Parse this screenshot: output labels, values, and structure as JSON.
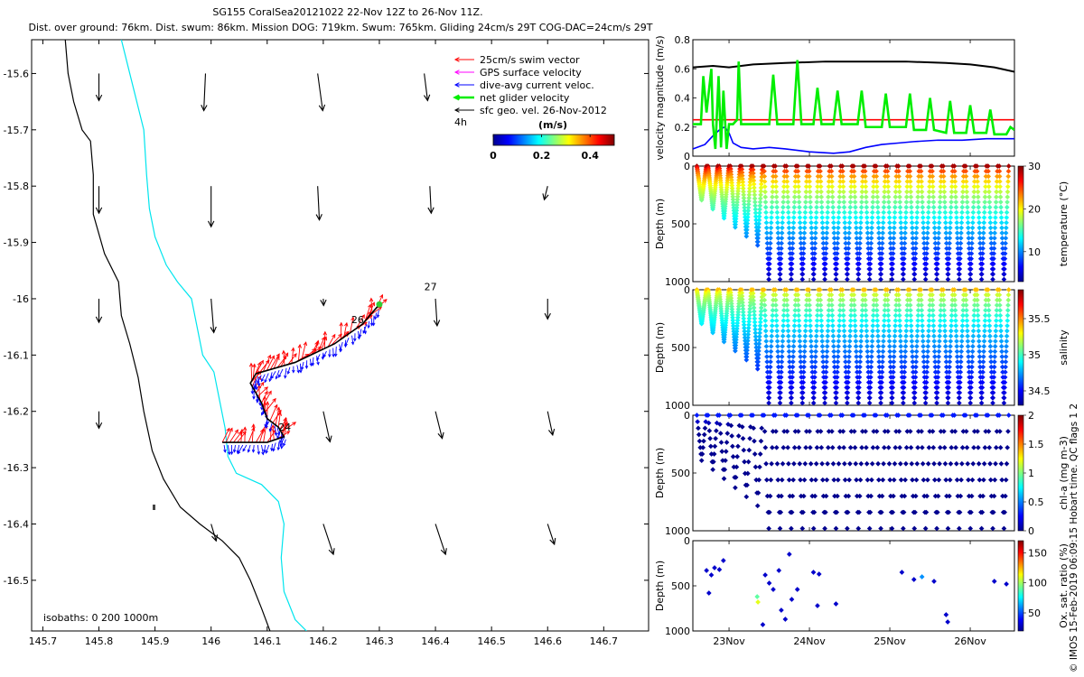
{
  "header": {
    "title": "SG155 CoralSea20121022 22-Nov 12Z to 26-Nov 11Z.",
    "subtitle": "Dist. over ground: 76km. Dist. swum: 86km. Mission DOG: 719km. Swum: 765km. Gliding 24cm/s 29T COG-DAC=24cm/s 29T"
  },
  "side_note": "© IMOS 15-Feb-2019 06:09:15 Hobart time. QC flags 1  2",
  "colors": {
    "swim": "#ff0000",
    "gps": "#ff00ff",
    "dac": "#0000ff",
    "net": "#00ee00",
    "geo": "#000000",
    "isobath_200": "#00e5ee",
    "isobath_1000": "#000000"
  },
  "chart_data": [
    {
      "type": "scatter",
      "name": "map",
      "xlim": [
        145.68,
        146.78
      ],
      "ylim": [
        -16.59,
        -15.54
      ],
      "xticks": [
        145.7,
        145.8,
        145.9,
        146,
        146.1,
        146.2,
        146.3,
        146.4,
        146.5,
        146.6,
        146.7
      ],
      "xtick_labels": [
        "145.7",
        "145.8",
        "145.9",
        "146",
        "146.1",
        "146.2",
        "146.3",
        "146.4",
        "146.5",
        "146.6",
        "146.7"
      ],
      "yticks": [
        -15.6,
        -15.7,
        -15.8,
        -15.9,
        -16,
        -16.1,
        -16.2,
        -16.3,
        -16.4,
        -16.5
      ],
      "ytick_labels": [
        "-15.6",
        "-15.7",
        "-15.8",
        "-15.9",
        "-16",
        "-16.1",
        "-16.2",
        "-16.3",
        "-16.4",
        "-16.5"
      ],
      "legend": {
        "placement": "top-right",
        "entries": [
          {
            "label": "25cm/s swim vector",
            "color": "#ff0000"
          },
          {
            "label": "GPS surface velocity",
            "color": "#ff00ff"
          },
          {
            "label": "dive-avg current veloc.",
            "color": "#0000ff"
          },
          {
            "label": "net glider velocity",
            "color": "#00ee00"
          },
          {
            "label": "sfc geo. vel. 26-Nov-2012",
            "color": "#000000"
          }
        ],
        "time_label": "4h"
      },
      "colorbar": {
        "label": "(m/s)",
        "ticks": [
          "0",
          "0.2",
          "0.4"
        ],
        "range": [
          0,
          0.5
        ]
      },
      "isobath_label": "isobaths: 0   200  1000m",
      "day_labels": [
        {
          "text": "24",
          "lon": 146.12,
          "lat": -16.234
        },
        {
          "text": "26",
          "lon": 146.25,
          "lat": -16.043
        },
        {
          "text": "27",
          "lon": 146.38,
          "lat": -15.985
        }
      ],
      "isobath_1000m": [
        [
          145.74,
          -15.54
        ],
        [
          145.745,
          -15.6
        ],
        [
          145.755,
          -15.65
        ],
        [
          145.77,
          -15.7
        ],
        [
          145.785,
          -15.72
        ],
        [
          145.79,
          -15.78
        ],
        [
          145.79,
          -15.85
        ],
        [
          145.81,
          -15.92
        ],
        [
          145.835,
          -15.97
        ],
        [
          145.84,
          -16.03
        ],
        [
          145.855,
          -16.08
        ],
        [
          145.87,
          -16.14
        ],
        [
          145.88,
          -16.2
        ],
        [
          145.895,
          -16.27
        ],
        [
          145.915,
          -16.32
        ],
        [
          145.945,
          -16.37
        ],
        [
          145.98,
          -16.4
        ],
        [
          146.02,
          -16.43
        ],
        [
          146.05,
          -16.46
        ],
        [
          146.07,
          -16.5
        ],
        [
          146.09,
          -16.55
        ],
        [
          146.105,
          -16.59
        ]
      ],
      "isobath_200m": [
        [
          145.84,
          -15.54
        ],
        [
          145.855,
          -15.6
        ],
        [
          145.87,
          -15.66
        ],
        [
          145.88,
          -15.7
        ],
        [
          145.885,
          -15.78
        ],
        [
          145.89,
          -15.84
        ],
        [
          145.9,
          -15.89
        ],
        [
          145.92,
          -15.94
        ],
        [
          145.94,
          -15.97
        ],
        [
          145.965,
          -16.0
        ],
        [
          145.975,
          -16.05
        ],
        [
          145.985,
          -16.1
        ],
        [
          146.005,
          -16.13
        ],
        [
          146.015,
          -16.18
        ],
        [
          146.025,
          -16.23
        ],
        [
          146.03,
          -16.28
        ],
        [
          146.045,
          -16.31
        ],
        [
          146.09,
          -16.33
        ],
        [
          146.12,
          -16.36
        ],
        [
          146.13,
          -16.4
        ],
        [
          146.125,
          -16.46
        ],
        [
          146.13,
          -16.52
        ],
        [
          146.15,
          -16.57
        ],
        [
          146.17,
          -16.59
        ]
      ],
      "glider_track": [
        [
          146.02,
          -16.255
        ],
        [
          146.1,
          -16.255
        ],
        [
          146.13,
          -16.245
        ],
        [
          146.12,
          -16.228
        ],
        [
          146.1,
          -16.213
        ],
        [
          146.09,
          -16.185
        ],
        [
          146.07,
          -16.15
        ],
        [
          146.08,
          -16.133
        ],
        [
          146.15,
          -16.113
        ],
        [
          146.22,
          -16.08
        ],
        [
          146.27,
          -16.045
        ],
        [
          146.3,
          -16.01
        ]
      ],
      "geo_velocity": [
        {
          "lon": 145.8,
          "lat": -15.6,
          "u": 0,
          "v": -0.08
        },
        {
          "lon": 145.99,
          "lat": -15.6,
          "u": -0.005,
          "v": -0.11
        },
        {
          "lon": 146.19,
          "lat": -15.6,
          "u": 0.015,
          "v": -0.11
        },
        {
          "lon": 146.38,
          "lat": -15.6,
          "u": 0.01,
          "v": -0.08
        },
        {
          "lon": 145.8,
          "lat": -15.8,
          "u": 0,
          "v": -0.08
        },
        {
          "lon": 146.0,
          "lat": -15.8,
          "u": 0,
          "v": -0.12
        },
        {
          "lon": 146.19,
          "lat": -15.8,
          "u": 0.005,
          "v": -0.1
        },
        {
          "lon": 146.39,
          "lat": -15.8,
          "u": 0.004,
          "v": -0.08
        },
        {
          "lon": 146.6,
          "lat": -15.8,
          "u": -0.01,
          "v": -0.04
        },
        {
          "lon": 145.8,
          "lat": -16.0,
          "u": 0,
          "v": -0.07
        },
        {
          "lon": 146.0,
          "lat": -16.0,
          "u": 0.008,
          "v": -0.1
        },
        {
          "lon": 146.2,
          "lat": -16.0,
          "u": 0.001,
          "v": -0.02
        },
        {
          "lon": 146.4,
          "lat": -16.0,
          "u": 0.005,
          "v": -0.08
        },
        {
          "lon": 146.6,
          "lat": -16.0,
          "u": 0,
          "v": -0.06
        },
        {
          "lon": 145.8,
          "lat": -16.2,
          "u": 0,
          "v": -0.05
        },
        {
          "lon": 146.2,
          "lat": -16.2,
          "u": 0.02,
          "v": -0.09
        },
        {
          "lon": 146.4,
          "lat": -16.2,
          "u": 0.02,
          "v": -0.08
        },
        {
          "lon": 146.6,
          "lat": -16.2,
          "u": 0.015,
          "v": -0.07
        },
        {
          "lon": 146.0,
          "lat": -16.4,
          "u": 0.015,
          "v": -0.05
        },
        {
          "lon": 146.2,
          "lat": -16.4,
          "u": 0.03,
          "v": -0.09
        },
        {
          "lon": 146.4,
          "lat": -16.4,
          "u": 0.03,
          "v": -0.09
        },
        {
          "lon": 146.6,
          "lat": -16.4,
          "u": 0.02,
          "v": -0.06
        }
      ]
    },
    {
      "type": "line",
      "name": "velocity",
      "ylabel": "velocity magnitude (m/s)",
      "ylim": [
        0,
        0.8
      ],
      "yticks": [
        0,
        0.2,
        0.4,
        0.6,
        0.8
      ],
      "xlim": [
        22.55,
        26.55
      ],
      "series": [
        {
          "color": "#000000",
          "x": [
            22.55,
            22.8,
            23.0,
            23.3,
            23.7,
            24.2,
            24.7,
            25.2,
            25.7,
            26.0,
            26.3,
            26.55
          ],
          "y": [
            0.61,
            0.62,
            0.61,
            0.63,
            0.64,
            0.65,
            0.65,
            0.65,
            0.64,
            0.63,
            0.61,
            0.58
          ]
        },
        {
          "color": "#ff0000",
          "x": [
            22.55,
            26.55
          ],
          "y": [
            0.25,
            0.25
          ]
        },
        {
          "color": "#0000ff",
          "x": [
            22.55,
            22.7,
            22.8,
            22.9,
            22.95,
            23.0,
            23.05,
            23.15,
            23.3,
            23.5,
            23.7,
            24.0,
            24.3,
            24.5,
            24.7,
            24.9,
            25.1,
            25.3,
            25.6,
            25.9,
            26.2,
            26.55
          ],
          "y": [
            0.05,
            0.08,
            0.14,
            0.19,
            0.2,
            0.16,
            0.09,
            0.06,
            0.05,
            0.06,
            0.05,
            0.03,
            0.02,
            0.03,
            0.06,
            0.08,
            0.09,
            0.1,
            0.11,
            0.11,
            0.12,
            0.12
          ]
        },
        {
          "color": "#00ee00",
          "x": [
            22.55,
            22.65,
            22.68,
            22.72,
            22.78,
            22.8,
            22.83,
            22.87,
            22.9,
            22.93,
            22.97,
            23.0,
            23.05,
            23.1,
            23.12,
            23.15,
            23.2,
            23.5,
            23.55,
            23.6,
            23.8,
            23.85,
            23.9,
            24.05,
            24.1,
            24.15,
            24.3,
            24.35,
            24.4,
            24.6,
            24.65,
            24.7,
            24.9,
            24.95,
            25.0,
            25.2,
            25.25,
            25.3,
            25.45,
            25.5,
            25.55,
            25.7,
            25.75,
            25.8,
            25.95,
            26.0,
            26.05,
            26.2,
            26.25,
            26.3,
            26.45,
            26.5,
            26.55
          ],
          "y": [
            0.22,
            0.22,
            0.55,
            0.3,
            0.6,
            0.22,
            0.05,
            0.55,
            0.06,
            0.45,
            0.05,
            0.22,
            0.22,
            0.25,
            0.65,
            0.22,
            0.22,
            0.22,
            0.56,
            0.22,
            0.22,
            0.66,
            0.22,
            0.22,
            0.47,
            0.22,
            0.22,
            0.45,
            0.22,
            0.22,
            0.45,
            0.2,
            0.2,
            0.43,
            0.2,
            0.2,
            0.43,
            0.18,
            0.18,
            0.4,
            0.18,
            0.16,
            0.38,
            0.16,
            0.16,
            0.35,
            0.16,
            0.16,
            0.32,
            0.15,
            0.15,
            0.2,
            0.18
          ]
        }
      ]
    },
    {
      "type": "scatter",
      "name": "temperature",
      "ylabel": "Depth (m)",
      "ylim": [
        1000,
        0
      ],
      "yticks": [
        0,
        500,
        1000
      ],
      "xlim": [
        22.55,
        26.55
      ],
      "colorbar": {
        "label": "temperature (°C)",
        "ticks": [
          10,
          20,
          30
        ],
        "range": [
          3,
          30
        ]
      },
      "dives": {
        "start": 22.6,
        "end": 26.5,
        "count": 28,
        "max_depth": 980,
        "surface_value": 29,
        "deep_value": 4.5
      }
    },
    {
      "type": "scatter",
      "name": "salinity",
      "ylabel": "Depth (m)",
      "ylim": [
        1000,
        0
      ],
      "yticks": [
        0,
        500,
        1000
      ],
      "xlim": [
        22.55,
        26.55
      ],
      "colorbar": {
        "label": "salinity",
        "ticks": [
          34.5,
          35,
          35.5
        ],
        "range": [
          34.3,
          35.9
        ]
      },
      "dives": {
        "start": 22.6,
        "end": 26.5,
        "count": 28,
        "max_depth": 980,
        "surface_value": 35.4,
        "deep_value": 34.4
      }
    },
    {
      "type": "scatter",
      "name": "chlorophyll",
      "ylabel": "Depth (m)",
      "ylim": [
        1000,
        0
      ],
      "yticks": [
        0,
        500,
        1000
      ],
      "xlim": [
        22.55,
        26.55
      ],
      "colorbar": {
        "label": "chl-a (mg m-3)",
        "ticks": [
          0,
          0.5,
          1,
          1.5,
          2
        ],
        "range": [
          0,
          2
        ]
      },
      "dives": {
        "start": 22.6,
        "end": 26.5,
        "count": 28,
        "max_depth": 980,
        "surface_value": 0.25,
        "deep_value": 0.0
      }
    },
    {
      "type": "scatter",
      "name": "oxygen",
      "ylabel": "Depth (m)",
      "xlabel_ticks": [
        "23Nov",
        "24Nov",
        "25Nov",
        "26Nov"
      ],
      "xticks": [
        23,
        24,
        25,
        26
      ],
      "ylim": [
        1000,
        0
      ],
      "yticks": [
        0,
        500,
        1000
      ],
      "xlim": [
        22.55,
        26.55
      ],
      "colorbar": {
        "label": "Ox. sat. ratio (%)",
        "ticks": [
          50,
          100,
          150
        ],
        "range": [
          20,
          170
        ]
      },
      "points": [
        [
          22.72,
          330,
          30
        ],
        [
          22.78,
          380,
          30
        ],
        [
          22.82,
          300,
          30
        ],
        [
          22.88,
          320,
          30
        ],
        [
          22.93,
          220,
          30
        ],
        [
          22.75,
          580,
          30
        ],
        [
          23.35,
          620,
          90
        ],
        [
          23.36,
          680,
          110
        ],
        [
          23.45,
          380,
          30
        ],
        [
          23.5,
          470,
          30
        ],
        [
          23.55,
          540,
          30
        ],
        [
          23.62,
          330,
          30
        ],
        [
          23.65,
          770,
          30
        ],
        [
          23.7,
          870,
          30
        ],
        [
          23.42,
          930,
          30
        ],
        [
          23.75,
          150,
          30
        ],
        [
          23.85,
          540,
          30
        ],
        [
          23.78,
          650,
          30
        ],
        [
          24.05,
          350,
          30
        ],
        [
          24.12,
          370,
          30
        ],
        [
          24.1,
          720,
          30
        ],
        [
          24.33,
          700,
          30
        ],
        [
          25.15,
          350,
          30
        ],
        [
          25.4,
          400,
          60
        ],
        [
          25.55,
          450,
          30
        ],
        [
          25.7,
          820,
          30
        ],
        [
          25.72,
          900,
          30
        ],
        [
          26.3,
          450,
          30
        ],
        [
          26.45,
          480,
          30
        ],
        [
          25.3,
          430,
          30
        ]
      ]
    }
  ]
}
